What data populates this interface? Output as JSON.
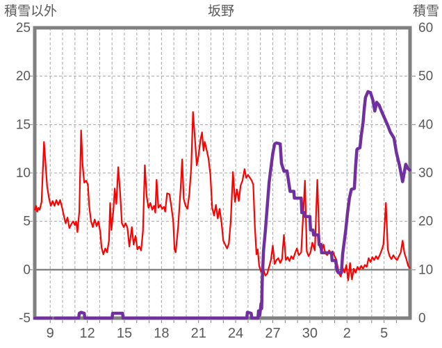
{
  "title": "坂野",
  "left_axis": {
    "label": "積雪以外",
    "min": -5,
    "max": 25,
    "ticks": [
      25,
      20,
      15,
      10,
      5,
      0,
      -5
    ],
    "dashed_grid_values": [
      20,
      15,
      10,
      5
    ],
    "zero_line_value": 0
  },
  "right_axis": {
    "label": "積雪",
    "min": 0,
    "max": 60,
    "ticks": [
      60,
      50,
      40,
      30,
      20,
      10,
      0
    ]
  },
  "x_axis": {
    "min": 7.75,
    "max": 38.1,
    "gridline_start": 9,
    "gridline_end": 37,
    "gridline_step": 1,
    "tick_positions": [
      9,
      12,
      15,
      18,
      21,
      24,
      27,
      30,
      33,
      36
    ],
    "tick_labels": [
      "9",
      "12",
      "15",
      "18",
      "21",
      "24",
      "27",
      "30",
      "2",
      "5"
    ]
  },
  "colors": {
    "temperature_line": "#FF0000",
    "snow_line": "#7030A0",
    "axis_border": "#808080",
    "zero_line": "#808080",
    "grid": "#A6A6A6",
    "text": "#595959",
    "background": "#FFFFFF"
  },
  "chart_data": {
    "type": "line",
    "title": "坂野",
    "legend": "none",
    "grid": "dashed daily vertical lines, dashed horizontal lines every 5 (left axis), solid line at left-axis 0",
    "x_description": "day of month, spanning about 8th to 5th of following month, labels every 3 days",
    "series": [
      {
        "name": "積雪以外",
        "axis": "left",
        "color": "#FF0000",
        "points": [
          [
            7.76,
            6.2
          ],
          [
            7.85,
            6.6
          ],
          [
            7.95,
            6.0
          ],
          [
            8.05,
            6.4
          ],
          [
            8.15,
            6.2
          ],
          [
            8.3,
            7.0
          ],
          [
            8.5,
            13.2
          ],
          [
            8.62,
            11.0
          ],
          [
            8.75,
            8.6
          ],
          [
            8.9,
            7.4
          ],
          [
            9.05,
            6.6
          ],
          [
            9.2,
            7.1
          ],
          [
            9.35,
            6.6
          ],
          [
            9.5,
            7.2
          ],
          [
            9.65,
            6.7
          ],
          [
            9.8,
            7.2
          ],
          [
            9.95,
            6.5
          ],
          [
            10.1,
            5.6
          ],
          [
            10.25,
            4.8
          ],
          [
            10.4,
            5.4
          ],
          [
            10.55,
            4.3
          ],
          [
            10.7,
            4.7
          ],
          [
            10.85,
            5.0
          ],
          [
            11.0,
            4.6
          ],
          [
            11.1,
            5.0
          ],
          [
            11.2,
            3.9
          ],
          [
            11.35,
            6.0
          ],
          [
            11.5,
            14.4
          ],
          [
            11.62,
            10.8
          ],
          [
            11.75,
            9.0
          ],
          [
            11.9,
            9.2
          ],
          [
            12.05,
            8.8
          ],
          [
            12.15,
            6.6
          ],
          [
            12.3,
            5.0
          ],
          [
            12.45,
            4.4
          ],
          [
            12.6,
            5.2
          ],
          [
            12.75,
            4.5
          ],
          [
            12.9,
            5.0
          ],
          [
            13.05,
            3.9
          ],
          [
            13.15,
            2.3
          ],
          [
            13.3,
            1.6
          ],
          [
            13.45,
            2.2
          ],
          [
            13.6,
            1.8
          ],
          [
            13.75,
            3.0
          ],
          [
            13.85,
            6.9
          ],
          [
            13.95,
            4.1
          ],
          [
            14.1,
            6.0
          ],
          [
            14.22,
            8.4
          ],
          [
            14.35,
            6.8
          ],
          [
            14.5,
            10.6
          ],
          [
            14.65,
            8.0
          ],
          [
            14.8,
            4.8
          ],
          [
            14.95,
            4.4
          ],
          [
            15.1,
            4.8
          ],
          [
            15.25,
            4.3
          ],
          [
            15.4,
            2.4
          ],
          [
            15.6,
            4.4
          ],
          [
            15.75,
            2.6
          ],
          [
            15.9,
            3.5
          ],
          [
            16.05,
            2.1
          ],
          [
            16.2,
            2.4
          ],
          [
            16.35,
            2.0
          ],
          [
            16.5,
            4.0
          ],
          [
            16.65,
            10.8
          ],
          [
            16.8,
            7.6
          ],
          [
            16.95,
            6.4
          ],
          [
            17.1,
            6.9
          ],
          [
            17.25,
            6.2
          ],
          [
            17.4,
            6.6
          ],
          [
            17.5,
            5.9
          ],
          [
            17.6,
            9.3
          ],
          [
            17.75,
            6.4
          ],
          [
            17.9,
            6.7
          ],
          [
            18.05,
            6.3
          ],
          [
            18.2,
            6.5
          ],
          [
            18.3,
            6.0
          ],
          [
            18.45,
            7.9
          ],
          [
            18.65,
            7.8
          ],
          [
            18.8,
            6.5
          ],
          [
            18.95,
            5.0
          ],
          [
            19.05,
            2.1
          ],
          [
            19.15,
            1.8
          ],
          [
            19.35,
            4.5
          ],
          [
            19.55,
            8.5
          ],
          [
            19.67,
            11.4
          ],
          [
            19.8,
            7.3
          ],
          [
            19.95,
            6.6
          ],
          [
            20.1,
            6.3
          ],
          [
            20.25,
            7.8
          ],
          [
            20.4,
            10.5
          ],
          [
            20.55,
            16.3
          ],
          [
            20.7,
            13.6
          ],
          [
            20.85,
            10.8
          ],
          [
            21.0,
            11.8
          ],
          [
            21.15,
            13.4
          ],
          [
            21.28,
            14.2
          ],
          [
            21.4,
            12.3
          ],
          [
            21.5,
            13.2
          ],
          [
            21.65,
            12.4
          ],
          [
            21.8,
            11.5
          ],
          [
            21.95,
            9.8
          ],
          [
            22.1,
            6.4
          ],
          [
            22.25,
            5.6
          ],
          [
            22.4,
            6.7
          ],
          [
            22.55,
            5.3
          ],
          [
            22.7,
            6.3
          ],
          [
            22.85,
            4.9
          ],
          [
            23.0,
            3.0
          ],
          [
            23.15,
            2.6
          ],
          [
            23.3,
            2.2
          ],
          [
            23.45,
            2.7
          ],
          [
            23.6,
            5.0
          ],
          [
            23.78,
            10.1
          ],
          [
            23.95,
            7.0
          ],
          [
            24.1,
            8.3
          ],
          [
            24.25,
            7.1
          ],
          [
            24.4,
            8.7
          ],
          [
            24.55,
            9.2
          ],
          [
            24.72,
            10.4
          ],
          [
            24.85,
            9.5
          ],
          [
            25.0,
            9.8
          ],
          [
            25.15,
            9.5
          ],
          [
            25.3,
            9.2
          ],
          [
            25.42,
            8.8
          ],
          [
            25.55,
            4.5
          ],
          [
            25.68,
            1.6
          ],
          [
            25.78,
            2.1
          ],
          [
            25.9,
            0.4
          ],
          [
            26.05,
            -0.2
          ],
          [
            26.2,
            0.2
          ],
          [
            26.4,
            -0.6
          ],
          [
            26.55,
            -0.4
          ],
          [
            26.7,
            0.3
          ],
          [
            26.85,
            1.0
          ],
          [
            27.0,
            2.5
          ],
          [
            27.15,
            0.6
          ],
          [
            27.3,
            1.0
          ],
          [
            27.45,
            1.2
          ],
          [
            27.6,
            0.7
          ],
          [
            27.75,
            1.1
          ],
          [
            27.9,
            3.6
          ],
          [
            28.05,
            1.0
          ],
          [
            28.2,
            1.3
          ],
          [
            28.35,
            0.9
          ],
          [
            28.5,
            1.4
          ],
          [
            28.65,
            1.1
          ],
          [
            28.8,
            1.7
          ],
          [
            28.95,
            2.2
          ],
          [
            29.1,
            1.5
          ],
          [
            29.3,
            1.8
          ],
          [
            29.6,
            9.2
          ],
          [
            29.75,
            1.9
          ],
          [
            29.9,
            1.4
          ],
          [
            30.05,
            1.8
          ],
          [
            30.2,
            2.8
          ],
          [
            30.4,
            2.0
          ],
          [
            30.6,
            9.3
          ],
          [
            30.78,
            2.4
          ],
          [
            30.95,
            1.9
          ],
          [
            31.1,
            2.6
          ],
          [
            31.25,
            1.7
          ],
          [
            31.4,
            1.5
          ],
          [
            31.55,
            2.0
          ],
          [
            31.7,
            1.6
          ],
          [
            31.85,
            1.9
          ],
          [
            32.0,
            1.4
          ],
          [
            32.15,
            1.0
          ],
          [
            32.35,
            -0.4
          ],
          [
            32.5,
            -0.7
          ],
          [
            32.65,
            0.2
          ],
          [
            32.8,
            -0.3
          ],
          [
            32.95,
            0.5
          ],
          [
            33.1,
            -1.1
          ],
          [
            33.25,
            0.7
          ],
          [
            33.4,
            -1.0
          ],
          [
            33.55,
            0.1
          ],
          [
            33.7,
            -0.3
          ],
          [
            33.85,
            0.3
          ],
          [
            34.0,
            0.0
          ],
          [
            34.15,
            0.4
          ],
          [
            34.3,
            0.1
          ],
          [
            34.45,
            0.5
          ],
          [
            34.6,
            0.3
          ],
          [
            34.75,
            1.2
          ],
          [
            34.9,
            0.8
          ],
          [
            35.05,
            1.3
          ],
          [
            35.2,
            1.0
          ],
          [
            35.35,
            1.4
          ],
          [
            35.5,
            1.1
          ],
          [
            35.65,
            1.5
          ],
          [
            35.8,
            2.0
          ],
          [
            35.95,
            2.6
          ],
          [
            36.15,
            6.9
          ],
          [
            36.3,
            2.1
          ],
          [
            36.45,
            1.4
          ],
          [
            36.6,
            1.1
          ],
          [
            36.75,
            1.5
          ],
          [
            36.9,
            1.2
          ],
          [
            37.05,
            1.0
          ],
          [
            37.2,
            1.4
          ],
          [
            37.35,
            1.8
          ],
          [
            37.5,
            3.0
          ],
          [
            37.65,
            1.7
          ],
          [
            37.8,
            1.1
          ],
          [
            37.95,
            0.4
          ],
          [
            38.08,
            0.2
          ]
        ]
      },
      {
        "name": "積雪",
        "axis": "right",
        "color": "#7030A0",
        "segments": [
          [
            [
              7.76,
              0
            ],
            [
              9.06,
              0
            ]
          ],
          [
            [
              9.4,
              0
            ],
            [
              11.3,
              0
            ],
            [
              11.35,
              1
            ],
            [
              11.5,
              1.2
            ],
            [
              11.75,
              1
            ],
            [
              11.8,
              0
            ],
            [
              14.0,
              0
            ],
            [
              14.05,
              1
            ],
            [
              14.85,
              1
            ],
            [
              14.9,
              0
            ],
            [
              24.9,
              0
            ],
            [
              24.95,
              1.2
            ],
            [
              25.25,
              1
            ],
            [
              25.3,
              0
            ],
            [
              25.8,
              0
            ],
            [
              25.85,
              1.5
            ],
            [
              25.95,
              0.6
            ],
            [
              26.05,
              3
            ],
            [
              26.1,
              2
            ],
            [
              26.15,
              8
            ],
            [
              26.25,
              14
            ],
            [
              26.4,
              18
            ],
            [
              26.55,
              23
            ],
            [
              26.7,
              28
            ],
            [
              26.85,
              31
            ],
            [
              27.0,
              34
            ],
            [
              27.15,
              36
            ],
            [
              27.3,
              36.2
            ],
            [
              27.6,
              36
            ],
            [
              27.7,
              32
            ],
            [
              27.9,
              30.4
            ],
            [
              28.15,
              30.4
            ],
            [
              28.4,
              26.2
            ],
            [
              28.7,
              26.2
            ],
            [
              28.75,
              24.8
            ],
            [
              29.3,
              24.8
            ],
            [
              29.35,
              21.8
            ],
            [
              29.55,
              21.8
            ],
            [
              29.6,
              21.0
            ],
            [
              30.0,
              21.0
            ],
            [
              30.05,
              18.2
            ],
            [
              30.25,
              18.2
            ],
            [
              30.3,
              17.2
            ],
            [
              30.7,
              17.2
            ],
            [
              30.75,
              15.2
            ],
            [
              30.9,
              15.2
            ],
            [
              30.95,
              13.5
            ],
            [
              31.75,
              13.5
            ],
            [
              31.8,
              11.9
            ],
            [
              32.1,
              11.9
            ],
            [
              32.15,
              10.6
            ],
            [
              32.2,
              9.8
            ],
            [
              32.3,
              9.4
            ],
            [
              32.55,
              9.4
            ],
            [
              32.65,
              13.2
            ],
            [
              32.9,
              18.2
            ],
            [
              33.05,
              21.8
            ],
            [
              33.2,
              24.8
            ],
            [
              33.35,
              26.6
            ],
            [
              33.6,
              26.8
            ],
            [
              33.7,
              31.4
            ],
            [
              33.8,
              34.8
            ],
            [
              33.85,
              35.0
            ],
            [
              34.05,
              35.2
            ],
            [
              34.15,
              37.6
            ],
            [
              34.3,
              40.4
            ],
            [
              34.4,
              43.4
            ],
            [
              34.5,
              45.6
            ],
            [
              34.6,
              46.2
            ],
            [
              34.7,
              46.8
            ],
            [
              34.9,
              46.6
            ],
            [
              35.1,
              45.0
            ],
            [
              35.25,
              42.8
            ],
            [
              35.4,
              44.6
            ],
            [
              35.6,
              44.0
            ],
            [
              35.85,
              42.4
            ],
            [
              36.1,
              41.0
            ],
            [
              36.3,
              39.8
            ],
            [
              36.5,
              38.5
            ],
            [
              36.8,
              37.2
            ],
            [
              37.0,
              34.2
            ],
            [
              37.25,
              31.5
            ],
            [
              37.5,
              28.2
            ],
            [
              37.75,
              31.8
            ],
            [
              37.9,
              31.0
            ],
            [
              38.08,
              30.6
            ]
          ]
        ]
      }
    ]
  }
}
